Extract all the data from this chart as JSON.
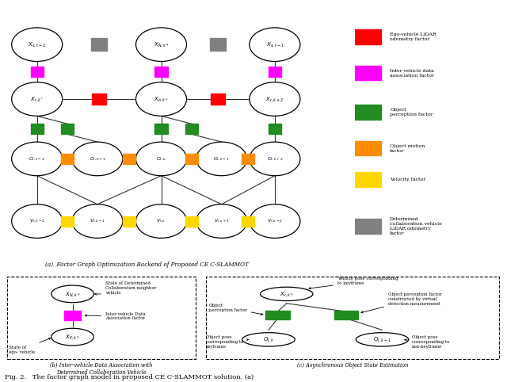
{
  "colors": {
    "red": "#FF0000",
    "magenta": "#FF00FF",
    "green": "#228B22",
    "orange": "#FF8C00",
    "yellow": "#FFD700",
    "gray": "#808080",
    "line": "#333333"
  },
  "legend_items": [
    {
      "color": "#FF0000",
      "label": "Ego-vehicle LiDAR\nodometry factor"
    },
    {
      "color": "#FF00FF",
      "label": "Inter-vehicle data\nassociation factor"
    },
    {
      "color": "#228B22",
      "label": "Object\nperception factor"
    },
    {
      "color": "#FF8C00",
      "label": "Object motion\nfactor"
    },
    {
      "color": "#FFD700",
      "label": "Velocity factor"
    },
    {
      "color": "#808080",
      "label": "Determined\ncollaboration vehicle\nLiDAR odometry\nfactor"
    }
  ],
  "title_a": "(a)  Factor Graph Optimization Backend of Proposed CE C-SLAMMOT",
  "title_b": "(b) Inter-vehicle Data Association with\nDetermined Collaboration Vehicle",
  "title_c": "(c) Asynchronous Object State Estimation",
  "fig_caption": "Fig. 2.   The factor graph model in proposed CE C-SLAMMOT solution. (a)"
}
